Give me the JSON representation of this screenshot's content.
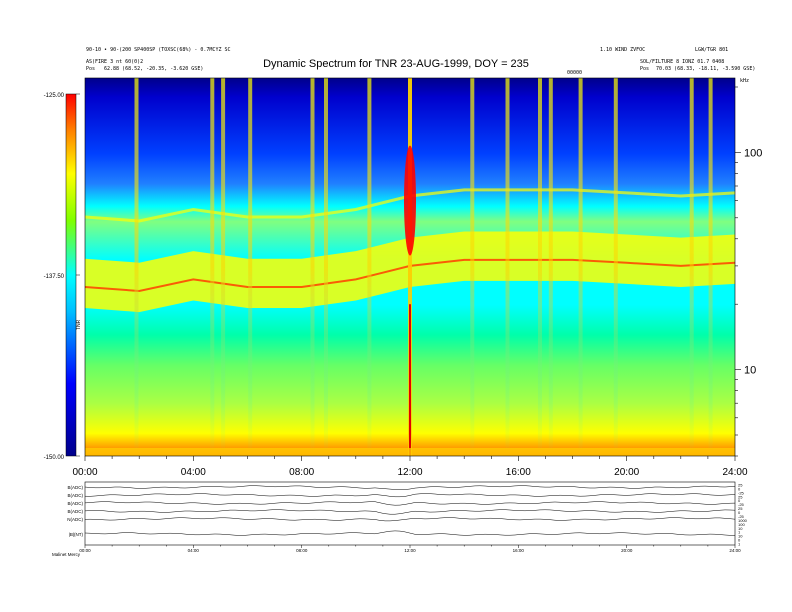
{
  "header": {
    "line1_left": "90-10 • 90-(200 SP400SP (TOXSC(68%) - 0.7MCYZ SC",
    "line2_left": "AS(FIRE 3 nt 60(0)2",
    "pos_left_label": "Pos",
    "pos_left_value": "62.88 (68.52, -20.35, -3.620 GSE)",
    "line1_right": "1.10 WIND ZVFOC",
    "line1_far_right": "LGW/TGR 801",
    "line2_right": "SOL/FILTURE 8 IONZ 01.7 0408",
    "pos_right_label": "Pos",
    "pos_right_value": "70.03 (68.33, -18.11, -3.590 GSE)",
    "mid_right_label": "00000",
    "khz_label": "kHz"
  },
  "colorbar": {
    "ticks": [
      "-125.00",
      "-137.50",
      "-150.00"
    ],
    "axis_label": "TNR"
  },
  "bottom_panel": {
    "x_ticks": [
      "00:00",
      "04:00",
      "08:00",
      "12:00",
      "16:00",
      "20:00",
      "24:00"
    ],
    "row_labels": [
      "B(ADC)",
      "B(ADC)",
      "B(ADC)",
      "B(ADC)",
      "N(ADC)",
      "|B|(NT)"
    ],
    "right_ticks": [
      "25",
      "0",
      "-25",
      "25",
      "0",
      "-25",
      "25",
      "0",
      "-25",
      "1000",
      "100",
      "10",
      "1",
      "10",
      "0",
      "1"
    ],
    "footer": "Malinet Mercy"
  },
  "chart_data": {
    "type": "heatmap",
    "title": "Dynamic Spectrum for TNR 23-AUG-1999, DOY = 235",
    "x_axis": {
      "ticks": [
        "00:00",
        "04:00",
        "08:00",
        "12:00",
        "16:00",
        "20:00",
        "24:00"
      ],
      "range_hours": [
        0,
        24
      ]
    },
    "y_axis": {
      "scale": "log",
      "unit": "kHz",
      "ticks": [
        10,
        100
      ],
      "range": [
        4,
        220
      ]
    },
    "colorscale": {
      "min": -150.0,
      "max": -125.0,
      "ticks": [
        -125.0,
        -137.5,
        -150.0
      ],
      "colors": [
        "#00008b",
        "#0000ff",
        "#00ffff",
        "#ffff00",
        "#ff0000"
      ]
    },
    "features": {
      "plasma_line_khz": [
        {
          "hour": 0,
          "khz": 24
        },
        {
          "hour": 2,
          "khz": 23
        },
        {
          "hour": 4,
          "khz": 26
        },
        {
          "hour": 6,
          "khz": 24
        },
        {
          "hour": 8,
          "khz": 24
        },
        {
          "hour": 10,
          "khz": 26
        },
        {
          "hour": 12,
          "khz": 30
        },
        {
          "hour": 14,
          "khz": 32
        },
        {
          "hour": 16,
          "khz": 32
        },
        {
          "hour": 18,
          "khz": 32
        },
        {
          "hour": 20,
          "khz": 31
        },
        {
          "hour": 22,
          "khz": 30
        },
        {
          "hour": 24,
          "khz": 31
        }
      ],
      "type_iii_burst_hours": [
        1.9,
        4.7,
        5.1,
        6.1,
        8.4,
        8.9,
        10.5,
        12.0,
        14.3,
        15.6,
        16.8,
        17.2,
        18.3,
        19.6,
        22.4,
        23.1
      ]
    }
  }
}
